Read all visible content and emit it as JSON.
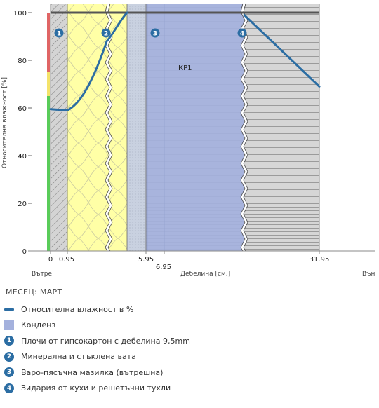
{
  "chart_data": {
    "type": "line",
    "ylabel": "Относителна влажност [%]",
    "xlabel": "Дебелина [см.]",
    "left_label": "Вътре",
    "right_label": "Вън",
    "ylim": [
      0,
      100
    ],
    "yticks": [
      0,
      20,
      40,
      60,
      80,
      100
    ],
    "xticks": [
      "0",
      "0.95",
      "5.95",
      "6.95",
      "31.95"
    ],
    "scale_bar": {
      "red": [
        75,
        100
      ],
      "yellow": [
        65,
        75
      ],
      "green": [
        0,
        65
      ]
    },
    "layers": [
      {
        "badge": "1",
        "name": "Плочи от гипсокартон с дебелина 9,5mm",
        "from": 0,
        "to": 0.95,
        "fill": "#d0d0d0",
        "pattern": "diagonal"
      },
      {
        "badge": "2",
        "name": "Минерална и стъклена вата",
        "from": 0.95,
        "to": 5.95,
        "fill": "#ffffa0",
        "pattern": "insulation"
      },
      {
        "badge": "3",
        "name": "Варо-пясъчна мазилка (вътрешна)",
        "from": 5.95,
        "to": 6.95,
        "fill": "#c8d2e0",
        "pattern": "dots"
      },
      {
        "badge": "4",
        "name": "Зидария от кухи и решетъчни тухли",
        "from": 6.95,
        "to": 31.95,
        "fill": "#d4d4d4",
        "pattern": "horizontal"
      }
    ],
    "condensation": {
      "label": "КР1",
      "from": 5.95,
      "to": 6.95
    },
    "series": [
      {
        "name": "Относителна влажност в %",
        "color": "#2b6da3",
        "x": [
          "0",
          "0.95",
          "mid2",
          "5.95",
          "4L",
          "31.95"
        ],
        "y": [
          59.5,
          59,
          88,
          100,
          99,
          69
        ]
      }
    ]
  },
  "month": "МЕСЕЦ: МАРТ",
  "legend": {
    "humidity": "Относителна влажност в %",
    "condensation": "Конденз",
    "layer_1": "Плочи от гипсокартон с дебелина 9,5mm",
    "layer_2": "Минерална и стъклена вата",
    "layer_3": "Варо-пясъчна мазилка (вътрешна)",
    "layer_4": "Зидария от кухи и решетъчни тухли"
  },
  "colors": {
    "humidity_line": "#2b6da3",
    "condensation": "#a4b1dd",
    "badge": "#2b6da3",
    "top_line": "#555555"
  }
}
